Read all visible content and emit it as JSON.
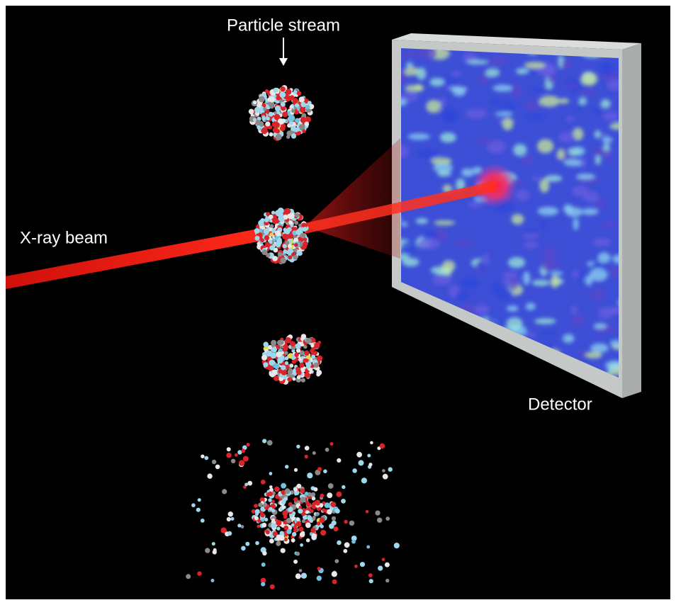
{
  "labels": {
    "particle_stream": "Particle stream",
    "xray_beam": "X-ray beam",
    "detector": "Detector"
  }
}
